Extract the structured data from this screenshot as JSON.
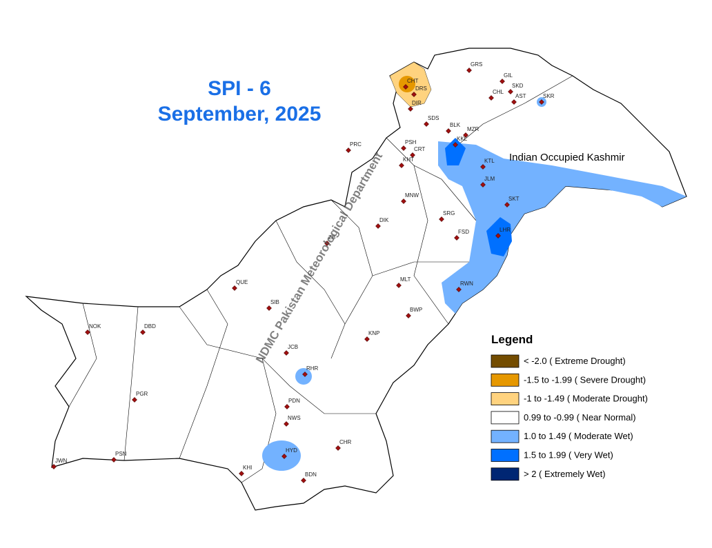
{
  "header": {
    "title": "SPI - 6",
    "subtitle": "September, 2025"
  },
  "annotation": "Indian Occupied Kashmir",
  "watermark": "NDMC Pakistan Meteorological Department",
  "legend": {
    "title": "Legend",
    "items": [
      {
        "color": "#734c00",
        "label": "< -2.0 ( Extreme Drought)"
      },
      {
        "color": "#e69800",
        "label": "-1.5 to -1.99 ( Severe Drought)"
      },
      {
        "color": "#ffd37f",
        "label": "-1 to -1.49 ( Moderate Drought)"
      },
      {
        "color": "#ffffff",
        "label": "0.99 to -0.99 ( Near Normal)"
      },
      {
        "color": "#73b2ff",
        "label": "1.0 to 1.49 ( Moderate Wet)"
      },
      {
        "color": "#0070ff",
        "label": "1.5 to 1.99 ( Very Wet)"
      },
      {
        "color": "#002673",
        "label": "> 2 ( Extremely Wet)"
      }
    ]
  },
  "stations": [
    {
      "label": "GRS"
    },
    {
      "label": "GIL"
    },
    {
      "label": "SKD"
    },
    {
      "label": "CHT"
    },
    {
      "label": "DRS"
    },
    {
      "label": "DIR"
    },
    {
      "label": "CHL"
    },
    {
      "label": "AST"
    },
    {
      "label": "SKR"
    },
    {
      "label": "SDS"
    },
    {
      "label": "BLK"
    },
    {
      "label": "MZR"
    },
    {
      "label": "KKL"
    },
    {
      "label": "PRC"
    },
    {
      "label": "PSH"
    },
    {
      "label": "CRT"
    },
    {
      "label": "KHT"
    },
    {
      "label": "KTL"
    },
    {
      "label": "JLM"
    },
    {
      "label": "SKT"
    },
    {
      "label": "MNW"
    },
    {
      "label": "DIK"
    },
    {
      "label": "SRG"
    },
    {
      "label": "FSD"
    },
    {
      "label": "LHR"
    },
    {
      "label": "ZB"
    },
    {
      "label": "QUE"
    },
    {
      "label": "SIB"
    },
    {
      "label": "MLT"
    },
    {
      "label": "RWN"
    },
    {
      "label": "BWP"
    },
    {
      "label": "KNP"
    },
    {
      "label": "NOK"
    },
    {
      "label": "DBD"
    },
    {
      "label": "JCB"
    },
    {
      "label": "RHR"
    },
    {
      "label": "PDN"
    },
    {
      "label": "NWS"
    },
    {
      "label": "PGR"
    },
    {
      "label": "HYD"
    },
    {
      "label": "CHR"
    },
    {
      "label": "BDN"
    },
    {
      "label": "KHI"
    },
    {
      "label": "PSN"
    },
    {
      "label": "JWN"
    }
  ]
}
